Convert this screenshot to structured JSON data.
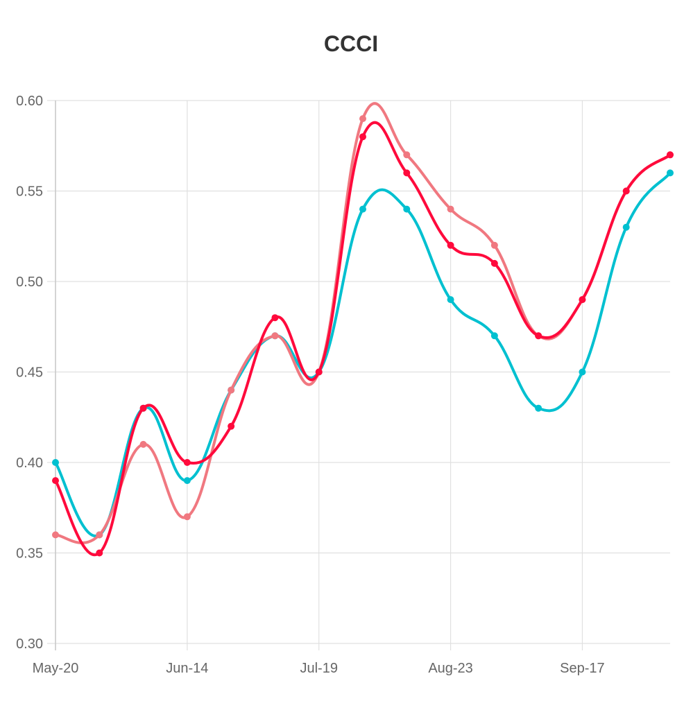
{
  "chart_data": {
    "type": "line",
    "title": "CCCI",
    "xlabel": "",
    "ylabel": "",
    "x": [
      "May-20",
      "",
      "",
      "Jun-14",
      "",
      "",
      "Jul-19",
      "",
      "",
      "Aug-23",
      "",
      "",
      "Sep-17",
      "",
      ""
    ],
    "x_tick_labels": [
      "May-20",
      "Jun-14",
      "Jul-19",
      "Aug-23",
      "Sep-17"
    ],
    "ylim": [
      0.3,
      0.6
    ],
    "y_ticks": [
      "0.30",
      "0.35",
      "0.40",
      "0.45",
      "0.50",
      "0.55",
      "0.60"
    ],
    "grid": true,
    "legend": "none",
    "series": [
      {
        "color": "#00c0d0",
        "values": [
          0.4,
          0.36,
          0.43,
          0.39,
          0.44,
          0.47,
          0.45,
          0.54,
          0.54,
          0.49,
          0.47,
          0.43,
          0.45,
          0.53,
          0.56
        ]
      },
      {
        "color": "#f07880",
        "values": [
          0.36,
          0.36,
          0.41,
          0.37,
          0.44,
          0.47,
          0.45,
          0.59,
          0.57,
          0.54,
          0.52,
          0.47,
          0.49,
          0.55,
          0.57
        ]
      },
      {
        "color": "#ff0a3c",
        "values": [
          0.39,
          0.35,
          0.43,
          0.4,
          0.42,
          0.48,
          0.45,
          0.58,
          0.56,
          0.52,
          0.51,
          0.47,
          0.49,
          0.55,
          0.57
        ]
      }
    ]
  }
}
